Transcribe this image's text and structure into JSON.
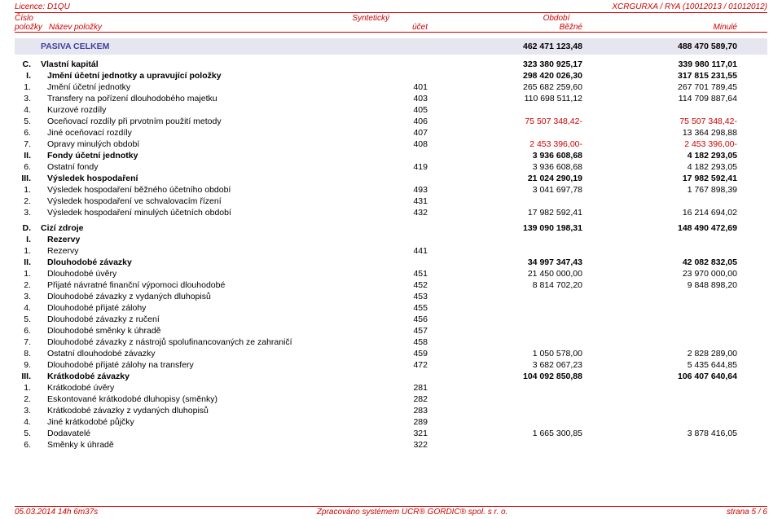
{
  "header": {
    "left": "Licence: D1QU",
    "right": "XCRGURXA / RYA (10012013 / 01012012)"
  },
  "colHeaders": {
    "r1c1": "Číslo",
    "r1c2": "Syntetický",
    "r1c3": "Období",
    "r2c1": "položky",
    "r2c2": "Název položky",
    "r2c3": "účet",
    "r2c4": "Běžné",
    "r2c5": "Minulé"
  },
  "mainBar": {
    "name": "PASIVA CELKEM",
    "v1": "462 471 123,48",
    "v2": "488 470 589,70"
  },
  "groupC": {
    "head": {
      "pre": "C.",
      "name": "Vlastní kapitál",
      "v1": "323 380 925,17",
      "v2": "339 980 117,01"
    },
    "sub1": {
      "pre": "I.",
      "name": "Jmění účetní jednotky a upravující položky",
      "v1": "298 420 026,30",
      "v2": "317 815 231,55"
    },
    "rows1": [
      {
        "pre": "1.",
        "name": "Jmění účetní jednotky",
        "acc": "401",
        "v1": "265 682 259,60",
        "v2": "267 701 789,45"
      },
      {
        "pre": "3.",
        "name": "Transfery na pořízení dlouhodobého majetku",
        "acc": "403",
        "v1": "110 698 511,12",
        "v2": "114 709 887,64"
      },
      {
        "pre": "4.",
        "name": "Kurzové rozdíly",
        "acc": "405",
        "v1": "",
        "v2": ""
      },
      {
        "pre": "5.",
        "name": "Oceňovací rozdíly při prvotním použití metody",
        "acc": "406",
        "v1": "75 507 348,42-",
        "v2": "75 507 348,42-",
        "neg": true
      },
      {
        "pre": "6.",
        "name": "Jiné oceňovací rozdíly",
        "acc": "407",
        "v1": "",
        "v2": "13 364 298,88"
      },
      {
        "pre": "7.",
        "name": "Opravy minulých období",
        "acc": "408",
        "v1": "2 453 396,00-",
        "v2": "2 453 396,00-",
        "neg": true
      }
    ],
    "sub2": {
      "pre": "II.",
      "name": "Fondy účetní jednotky",
      "v1": "3 936 608,68",
      "v2": "4 182 293,05"
    },
    "rows2": [
      {
        "pre": "6.",
        "name": "Ostatní fondy",
        "acc": "419",
        "v1": "3 936 608,68",
        "v2": "4 182 293,05"
      }
    ],
    "sub3": {
      "pre": "III.",
      "name": "Výsledek hospodaření",
      "v1": "21 024 290,19",
      "v2": "17 982 592,41"
    },
    "rows3": [
      {
        "pre": "1.",
        "name": "Výsledek hospodaření běžného účetního období",
        "acc": "493",
        "v1": "3 041 697,78",
        "v2": "1 767 898,39"
      },
      {
        "pre": "2.",
        "name": "Výsledek hospodaření ve schvalovacím řízení",
        "acc": "431",
        "v1": "",
        "v2": ""
      },
      {
        "pre": "3.",
        "name": "Výsledek hospodaření minulých účetních období",
        "acc": "432",
        "v1": "17 982 592,41",
        "v2": "16 214 694,02"
      }
    ]
  },
  "groupD": {
    "head": {
      "pre": "D.",
      "name": "Cizí zdroje",
      "v1": "139 090 198,31",
      "v2": "148 490 472,69"
    },
    "sub1": {
      "pre": "I.",
      "name": "Rezervy"
    },
    "rows1": [
      {
        "pre": "1.",
        "name": "Rezervy",
        "acc": "441",
        "v1": "",
        "v2": ""
      }
    ],
    "sub2": {
      "pre": "II.",
      "name": "Dlouhodobé závazky",
      "v1": "34 997 347,43",
      "v2": "42 082 832,05"
    },
    "rows2": [
      {
        "pre": "1.",
        "name": "Dlouhodobé úvěry",
        "acc": "451",
        "v1": "21 450 000,00",
        "v2": "23 970 000,00"
      },
      {
        "pre": "2.",
        "name": "Přijaté návratné finanční výpomoci dlouhodobé",
        "acc": "452",
        "v1": "8 814 702,20",
        "v2": "9 848 898,20"
      },
      {
        "pre": "3.",
        "name": "Dlouhodobé závazky z vydaných dluhopisů",
        "acc": "453",
        "v1": "",
        "v2": ""
      },
      {
        "pre": "4.",
        "name": "Dlouhodobé přijaté zálohy",
        "acc": "455",
        "v1": "",
        "v2": ""
      },
      {
        "pre": "5.",
        "name": "Dlouhodobé závazky z ručení",
        "acc": "456",
        "v1": "",
        "v2": ""
      },
      {
        "pre": "6.",
        "name": "Dlouhodobé směnky k úhradě",
        "acc": "457",
        "v1": "",
        "v2": ""
      },
      {
        "pre": "7.",
        "name": "Dlouhodobé závazky z nástrojů spolufinancovaných ze zahraničí",
        "acc": "458",
        "v1": "",
        "v2": ""
      },
      {
        "pre": "8.",
        "name": "Ostatní dlouhodobé závazky",
        "acc": "459",
        "v1": "1 050 578,00",
        "v2": "2 828 289,00"
      },
      {
        "pre": "9.",
        "name": "Dlouhodobé přijaté zálohy na transfery",
        "acc": "472",
        "v1": "3 682 067,23",
        "v2": "5 435 644,85"
      }
    ],
    "sub3": {
      "pre": "III.",
      "name": "Krátkodobé závazky",
      "v1": "104 092 850,88",
      "v2": "106 407 640,64"
    },
    "rows3": [
      {
        "pre": "1.",
        "name": "Krátkodobé úvěry",
        "acc": "281",
        "v1": "",
        "v2": ""
      },
      {
        "pre": "2.",
        "name": "Eskontované krátkodobé dluhopisy (směnky)",
        "acc": "282",
        "v1": "",
        "v2": ""
      },
      {
        "pre": "3.",
        "name": "Krátkodobé závazky z vydaných dluhopisů",
        "acc": "283",
        "v1": "",
        "v2": ""
      },
      {
        "pre": "4.",
        "name": "Jiné krátkodobé půjčky",
        "acc": "289",
        "v1": "",
        "v2": ""
      },
      {
        "pre": "5.",
        "name": "Dodavatelé",
        "acc": "321",
        "v1": "1 665 300,85",
        "v2": "3 878 416,05"
      },
      {
        "pre": "6.",
        "name": "Směnky k úhradě",
        "acc": "322",
        "v1": "",
        "v2": ""
      }
    ]
  },
  "footer": {
    "left": "05.03.2014 14h 6m37s",
    "center": "Zpracováno systémem  UCR® GORDIC® spol. s  r. o.",
    "right": "strana 5 / 6"
  }
}
